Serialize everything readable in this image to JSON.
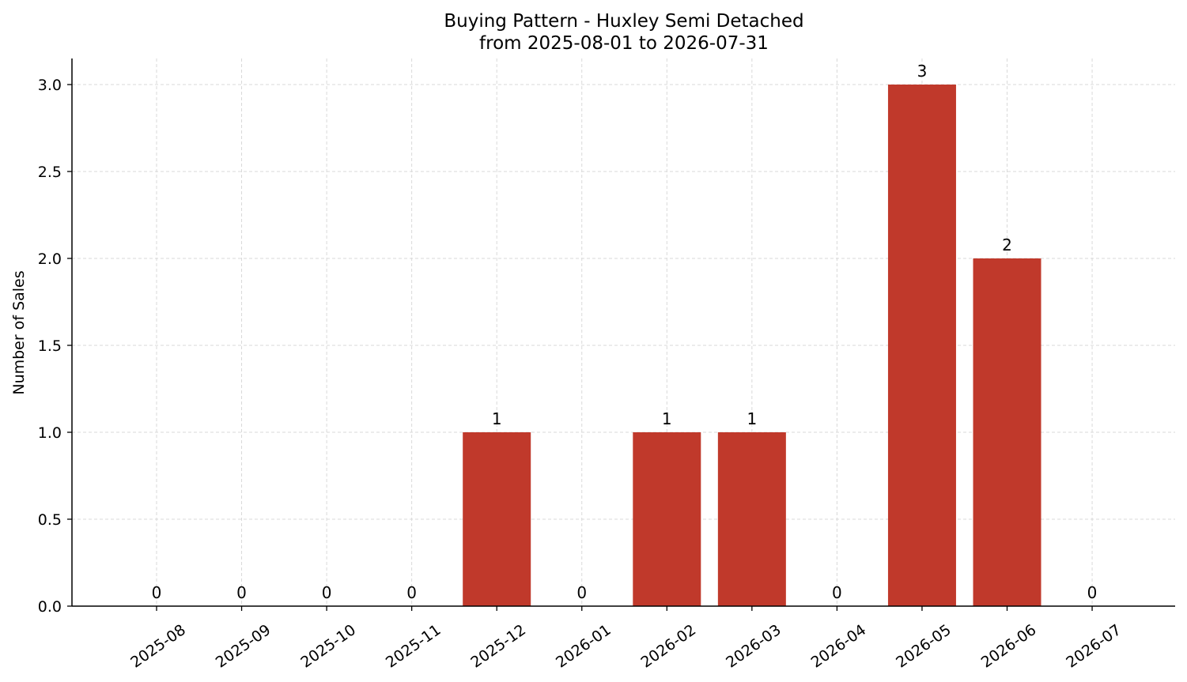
{
  "chart_data": {
    "type": "bar",
    "title": "Buying Pattern - Huxley Semi Detached",
    "subtitle": "from 2025-08-01 to 2026-07-31",
    "xlabel": "",
    "ylabel": "Number of Sales",
    "categories": [
      "2025-08",
      "2025-09",
      "2025-10",
      "2025-11",
      "2025-12",
      "2026-01",
      "2026-02",
      "2026-03",
      "2026-04",
      "2026-05",
      "2026-06",
      "2026-07"
    ],
    "values": [
      0,
      0,
      0,
      0,
      1,
      0,
      1,
      1,
      0,
      3,
      2,
      0
    ],
    "data_labels": [
      "0",
      "0",
      "0",
      "0",
      "1",
      "0",
      "1",
      "1",
      "0",
      "3",
      "2",
      "0"
    ],
    "ylim": [
      0,
      3.15
    ],
    "yticks": [
      0.0,
      0.5,
      1.0,
      1.5,
      2.0,
      2.5,
      3.0
    ],
    "ytick_labels": [
      "0.0",
      "0.5",
      "1.0",
      "1.5",
      "2.0",
      "2.5",
      "3.0"
    ],
    "grid": true,
    "bar_color": "#c0392b",
    "grid_color": "#d9d9d9"
  }
}
